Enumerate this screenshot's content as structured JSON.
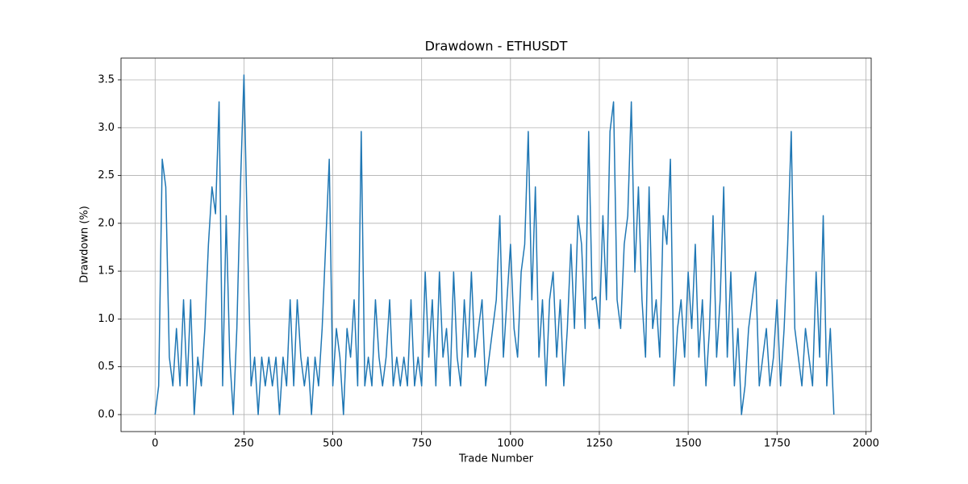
{
  "chart_data": {
    "type": "line",
    "title": "Drawdown - ETHUSDT",
    "x_label": "Trade Number",
    "y_label": "Drawdown (%)",
    "x": [
      0,
      10,
      20,
      30,
      40,
      50,
      60,
      70,
      80,
      90,
      100,
      110,
      120,
      130,
      140,
      150,
      160,
      170,
      180,
      190,
      200,
      210,
      220,
      230,
      240,
      250,
      260,
      270,
      280,
      290,
      300,
      310,
      320,
      330,
      340,
      350,
      360,
      370,
      380,
      390,
      400,
      410,
      420,
      430,
      440,
      450,
      460,
      470,
      480,
      490,
      500,
      510,
      520,
      530,
      540,
      550,
      560,
      570,
      580,
      590,
      600,
      610,
      620,
      630,
      640,
      650,
      660,
      670,
      680,
      690,
      700,
      710,
      720,
      730,
      740,
      750,
      760,
      770,
      780,
      790,
      800,
      810,
      820,
      830,
      840,
      850,
      860,
      870,
      880,
      890,
      900,
      910,
      920,
      930,
      940,
      950,
      960,
      970,
      980,
      990,
      1000,
      1010,
      1020,
      1030,
      1040,
      1050,
      1060,
      1070,
      1080,
      1090,
      1100,
      1110,
      1120,
      1130,
      1140,
      1150,
      1160,
      1170,
      1180,
      1190,
      1200,
      1210,
      1220,
      1230,
      1240,
      1250,
      1260,
      1270,
      1280,
      1290,
      1300,
      1310,
      1320,
      1330,
      1340,
      1350,
      1360,
      1370,
      1380,
      1390,
      1400,
      1410,
      1420,
      1430,
      1440,
      1450,
      1460,
      1470,
      1480,
      1490,
      1500,
      1510,
      1520,
      1530,
      1540,
      1550,
      1560,
      1570,
      1580,
      1590,
      1600,
      1610,
      1620,
      1630,
      1640,
      1650,
      1660,
      1670,
      1680,
      1690,
      1700,
      1710,
      1720,
      1730,
      1740,
      1750,
      1760,
      1770,
      1780,
      1790,
      1800,
      1810,
      1820,
      1830,
      1840,
      1850,
      1860,
      1870,
      1880,
      1890,
      1900,
      1910
    ],
    "series": [
      {
        "name": "Drawdown",
        "color": "#1f77b4",
        "values": [
          0,
          0.3,
          2.67,
          2.38,
          0.6,
          0.3,
          0.9,
          0.3,
          1.2,
          0.3,
          1.2,
          0,
          0.6,
          0.3,
          0.9,
          1.78,
          2.38,
          2.1,
          3.27,
          0.3,
          2.08,
          0.6,
          0,
          0.9,
          2.38,
          3.55,
          1.8,
          0.3,
          0.6,
          0,
          0.6,
          0.3,
          0.6,
          0.3,
          0.6,
          0,
          0.6,
          0.3,
          1.2,
          0.3,
          1.2,
          0.6,
          0.3,
          0.6,
          0,
          0.6,
          0.3,
          0.9,
          1.78,
          2.67,
          0.3,
          0.9,
          0.6,
          0,
          0.9,
          0.6,
          1.2,
          0.3,
          2.96,
          0.3,
          0.6,
          0.3,
          1.2,
          0.6,
          0.3,
          0.6,
          1.2,
          0.3,
          0.6,
          0.3,
          0.6,
          0.3,
          1.2,
          0.3,
          0.6,
          0.3,
          1.49,
          0.6,
          1.2,
          0.3,
          1.49,
          0.6,
          0.9,
          0.3,
          1.49,
          0.6,
          0.3,
          1.2,
          0.6,
          1.49,
          0.6,
          0.9,
          1.2,
          0.3,
          0.6,
          0.9,
          1.2,
          2.08,
          0.6,
          1.2,
          1.78,
          0.9,
          0.6,
          1.49,
          1.78,
          2.96,
          1.2,
          2.38,
          0.6,
          1.2,
          0.3,
          1.2,
          1.49,
          0.6,
          1.2,
          0.3,
          0.9,
          1.78,
          0.9,
          2.08,
          1.78,
          0.9,
          2.96,
          1.2,
          1.23,
          0.9,
          2.08,
          1.2,
          2.96,
          3.27,
          1.2,
          0.9,
          1.78,
          2.08,
          3.27,
          1.49,
          2.38,
          1.2,
          0.6,
          2.38,
          0.9,
          1.2,
          0.6,
          2.08,
          1.78,
          2.67,
          0.3,
          0.9,
          1.2,
          0.6,
          1.49,
          0.9,
          1.78,
          0.6,
          1.2,
          0.3,
          0.9,
          2.08,
          0.6,
          1.2,
          2.38,
          0.6,
          1.49,
          0.3,
          0.9,
          0,
          0.3,
          0.9,
          1.2,
          1.49,
          0.3,
          0.6,
          0.9,
          0.3,
          0.6,
          1.2,
          0.3,
          0.9,
          1.78,
          2.96,
          0.9,
          0.6,
          0.3,
          0.9,
          0.6,
          0.3,
          1.49,
          0.6,
          2.08,
          0.3,
          0.9,
          0
        ]
      }
    ],
    "xlim": [
      -96,
      2015
    ],
    "xticks": [
      0,
      250,
      500,
      750,
      1000,
      1250,
      1500,
      1750,
      2000
    ],
    "ylim": [
      -0.1775,
      3.7275
    ],
    "yticks": [
      {
        "value": 0,
        "label": "0.0"
      },
      0.5,
      {
        "value": 1,
        "label": "1.0"
      },
      1.5,
      {
        "value": 2,
        "label": "2.0"
      },
      2.5,
      {
        "value": 3,
        "label": "3.0"
      },
      3.5
    ],
    "grid": true
  }
}
